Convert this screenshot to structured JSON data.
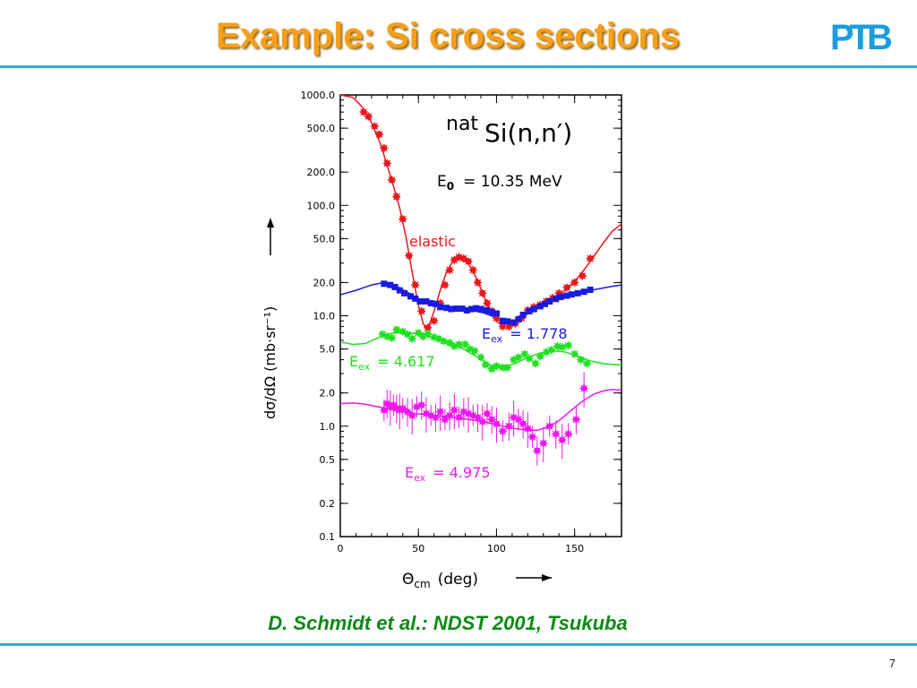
{
  "slide": {
    "title": "Example: Si cross sections",
    "logo": "PTB",
    "citation": "D. Schmidt et al.: NDST 2001, Tsukuba",
    "page_number": "7"
  },
  "chart_data": {
    "type": "scatter",
    "title_prefix": "nat",
    "title_main": "Si(n,n′)",
    "incident_energy_label": "E",
    "incident_energy_sub": "0",
    "incident_energy_value": "=  10.35  MeV",
    "xlabel": "Θ",
    "xlabel_sub": "cm",
    "xlabel_unit": "(deg)",
    "ylabel": "dσ/dΩ  (mb·sr⁻¹)",
    "xlim": [
      0,
      180
    ],
    "ylim": [
      0.1,
      1000
    ],
    "yscale": "log",
    "x_ticks": [
      {
        "value": 0,
        "label": "0"
      },
      {
        "value": 50,
        "label": "50"
      },
      {
        "value": 100,
        "label": "100"
      },
      {
        "value": 150,
        "label": "150"
      }
    ],
    "y_ticks": [
      {
        "value": 1000,
        "label": "1000.0"
      },
      {
        "value": 500,
        "label": "500.0"
      },
      {
        "value": 200,
        "label": "200.0"
      },
      {
        "value": 100,
        "label": "100.0"
      },
      {
        "value": 50,
        "label": "50.0"
      },
      {
        "value": 20,
        "label": "20.0"
      },
      {
        "value": 10,
        "label": "10.0"
      },
      {
        "value": 5,
        "label": "5.0"
      },
      {
        "value": 2,
        "label": "2.0"
      },
      {
        "value": 1,
        "label": "1.0"
      },
      {
        "value": 0.5,
        "label": "0.5"
      },
      {
        "value": 0.2,
        "label": "0.2"
      },
      {
        "value": 0.1,
        "label": "0.1"
      }
    ],
    "series": [
      {
        "name": "elastic",
        "label_prefix": "",
        "label_sub": "",
        "label_value": "",
        "color": "#e8181c",
        "marker": "star",
        "points": [
          [
            15,
            700
          ],
          [
            18,
            640
          ],
          [
            22,
            520
          ],
          [
            25,
            440
          ],
          [
            28,
            330
          ],
          [
            30,
            240
          ],
          [
            33,
            170
          ],
          [
            36,
            120
          ],
          [
            40,
            75
          ],
          [
            44,
            35
          ],
          [
            48,
            19
          ],
          [
            52,
            11
          ],
          [
            56,
            7.8
          ],
          [
            60,
            9.0
          ],
          [
            64,
            13
          ],
          [
            67,
            19
          ],
          [
            70,
            26
          ],
          [
            73,
            32
          ],
          [
            76,
            34
          ],
          [
            79,
            33
          ],
          [
            82,
            31
          ],
          [
            85,
            26
          ],
          [
            88,
            20
          ],
          [
            91,
            16
          ],
          [
            94,
            13
          ],
          [
            97,
            11
          ],
          [
            100,
            9.5
          ],
          [
            104,
            8.0
          ],
          [
            108,
            8.0
          ],
          [
            112,
            8.5
          ],
          [
            116,
            9.5
          ],
          [
            120,
            11.2
          ],
          [
            124,
            12.0
          ],
          [
            128,
            12.5
          ],
          [
            132,
            13.5
          ],
          [
            136,
            14.5
          ],
          [
            140,
            16
          ],
          [
            145,
            18
          ],
          [
            150,
            20
          ],
          [
            155,
            23
          ],
          [
            160,
            33
          ]
        ],
        "curve": [
          [
            0,
            1000
          ],
          [
            8,
            950
          ],
          [
            14,
            780
          ],
          [
            20,
            560
          ],
          [
            26,
            350
          ],
          [
            30,
            230
          ],
          [
            34,
            150
          ],
          [
            38,
            95
          ],
          [
            42,
            52
          ],
          [
            46,
            25
          ],
          [
            50,
            12.5
          ],
          [
            53,
            8.5
          ],
          [
            55,
            7.6
          ],
          [
            57,
            8.3
          ],
          [
            60,
            11
          ],
          [
            64,
            17
          ],
          [
            68,
            25
          ],
          [
            72,
            31
          ],
          [
            76,
            33.5
          ],
          [
            80,
            32
          ],
          [
            84,
            27
          ],
          [
            88,
            20.5
          ],
          [
            92,
            15
          ],
          [
            96,
            11.2
          ],
          [
            100,
            9.0
          ],
          [
            104,
            8.0
          ],
          [
            108,
            8.0
          ],
          [
            112,
            8.6
          ],
          [
            116,
            9.5
          ],
          [
            120,
            10.6
          ],
          [
            126,
            12
          ],
          [
            132,
            13.3
          ],
          [
            138,
            14.7
          ],
          [
            144,
            17
          ],
          [
            150,
            20.5
          ],
          [
            156,
            26
          ],
          [
            162,
            34
          ],
          [
            168,
            45
          ],
          [
            174,
            58
          ],
          [
            180,
            68
          ]
        ]
      },
      {
        "name": "",
        "label_prefix": "E",
        "label_sub": "ex",
        "label_value": "=  1.778",
        "color": "#1a1ae0",
        "marker": "square",
        "points": [
          [
            28,
            19.5
          ],
          [
            32,
            19
          ],
          [
            35,
            18.2
          ],
          [
            38,
            17
          ],
          [
            41,
            16
          ],
          [
            45,
            15
          ],
          [
            48,
            14.3
          ],
          [
            51,
            13.5
          ],
          [
            55,
            13.5
          ],
          [
            58,
            13
          ],
          [
            61,
            12.8
          ],
          [
            64,
            12
          ],
          [
            68,
            11.8
          ],
          [
            71,
            11.5
          ],
          [
            74,
            11.6
          ],
          [
            78,
            11.6
          ],
          [
            81,
            11.2
          ],
          [
            84,
            11.5
          ],
          [
            87,
            11.7
          ],
          [
            90,
            11.5
          ],
          [
            94,
            11.2
          ],
          [
            97,
            10.8
          ],
          [
            100,
            10.5
          ],
          [
            104,
            9.0
          ],
          [
            107,
            8.9
          ],
          [
            111,
            8.7
          ],
          [
            114,
            9.3
          ],
          [
            117,
            10.2
          ],
          [
            121,
            11.0
          ],
          [
            124,
            11.5
          ],
          [
            128,
            12.2
          ],
          [
            131,
            12.8
          ],
          [
            134,
            13.5
          ],
          [
            138,
            14.2
          ],
          [
            141,
            14.8
          ],
          [
            145,
            15.2
          ],
          [
            148,
            15.6
          ],
          [
            152,
            16
          ],
          [
            156,
            16.5
          ],
          [
            160,
            17.2
          ]
        ],
        "curve": [
          [
            0,
            15.5
          ],
          [
            10,
            17
          ],
          [
            20,
            19
          ],
          [
            28,
            20
          ],
          [
            36,
            18.5
          ],
          [
            44,
            16
          ],
          [
            52,
            13.8
          ],
          [
            60,
            12.6
          ],
          [
            68,
            11.9
          ],
          [
            76,
            11.5
          ],
          [
            84,
            11.2
          ],
          [
            92,
            10.6
          ],
          [
            100,
            9.6
          ],
          [
            106,
            9.0
          ],
          [
            112,
            9.1
          ],
          [
            118,
            10
          ],
          [
            126,
            11.8
          ],
          [
            134,
            13.6
          ],
          [
            142,
            15
          ],
          [
            150,
            16
          ],
          [
            158,
            16.8
          ],
          [
            166,
            17.6
          ],
          [
            174,
            18.5
          ],
          [
            180,
            19
          ]
        ]
      },
      {
        "name": "",
        "label_prefix": "E",
        "label_sub": "ex",
        "label_value": "=  4.617",
        "color": "#22e022",
        "marker": "star",
        "points": [
          [
            27,
            6.8
          ],
          [
            30,
            6.5
          ],
          [
            33,
            6.3
          ],
          [
            36,
            7.5
          ],
          [
            40,
            7.2
          ],
          [
            43,
            6.8
          ],
          [
            46,
            6.2
          ],
          [
            50,
            7.0
          ],
          [
            53,
            6.5
          ],
          [
            56,
            6.9
          ],
          [
            60,
            6.4
          ],
          [
            63,
            6.2
          ],
          [
            66,
            5.9
          ],
          [
            70,
            5.7
          ],
          [
            73,
            5.3
          ],
          [
            76,
            5.5
          ],
          [
            80,
            5.5
          ],
          [
            83,
            5.0
          ],
          [
            86,
            4.8
          ],
          [
            90,
            4.2
          ],
          [
            93,
            3.6
          ],
          [
            97,
            3.3
          ],
          [
            100,
            3.5
          ],
          [
            104,
            3.4
          ],
          [
            107,
            3.4
          ],
          [
            111,
            4.0
          ],
          [
            114,
            4.2
          ],
          [
            118,
            4.5
          ],
          [
            121,
            4.1
          ],
          [
            125,
            3.7
          ],
          [
            128,
            4.3
          ],
          [
            132,
            4.7
          ],
          [
            135,
            4.9
          ],
          [
            139,
            5.3
          ],
          [
            142,
            5.2
          ],
          [
            146,
            5.4
          ],
          [
            150,
            4.5
          ],
          [
            154,
            4.0
          ],
          [
            158,
            3.7
          ]
        ],
        "curve": [
          [
            0,
            5.8
          ],
          [
            8,
            5.5
          ],
          [
            16,
            5.6
          ],
          [
            24,
            6.3
          ],
          [
            32,
            6.9
          ],
          [
            40,
            7.1
          ],
          [
            48,
            6.9
          ],
          [
            56,
            6.5
          ],
          [
            64,
            6.0
          ],
          [
            72,
            5.5
          ],
          [
            80,
            4.9
          ],
          [
            88,
            4.2
          ],
          [
            96,
            3.6
          ],
          [
            104,
            3.4
          ],
          [
            112,
            3.7
          ],
          [
            120,
            4.2
          ],
          [
            128,
            4.6
          ],
          [
            136,
            4.8
          ],
          [
            144,
            4.7
          ],
          [
            152,
            4.3
          ],
          [
            160,
            3.9
          ],
          [
            168,
            3.7
          ],
          [
            176,
            3.6
          ],
          [
            180,
            3.6
          ]
        ]
      },
      {
        "name": "",
        "label_prefix": "E",
        "label_sub": "ex",
        "label_value": "=  4.975",
        "color": "#ee18ee",
        "marker": "star",
        "points": [
          [
            28,
            1.4
          ],
          [
            30,
            1.6
          ],
          [
            32,
            1.5
          ],
          [
            34,
            1.55
          ],
          [
            36,
            1.45
          ],
          [
            38,
            1.4
          ],
          [
            40,
            1.45
          ],
          [
            43,
            1.35
          ],
          [
            46,
            1.25
          ],
          [
            49,
            1.5
          ],
          [
            52,
            1.55
          ],
          [
            55,
            1.3
          ],
          [
            58,
            1.25
          ],
          [
            61,
            1.2
          ],
          [
            64,
            1.35
          ],
          [
            67,
            1.15
          ],
          [
            70,
            1.25
          ],
          [
            73,
            1.4
          ],
          [
            76,
            1.2
          ],
          [
            79,
            1.35
          ],
          [
            82,
            1.3
          ],
          [
            85,
            1.25
          ],
          [
            88,
            1.2
          ],
          [
            91,
            1.1
          ],
          [
            94,
            1.3
          ],
          [
            97,
            1.15
          ],
          [
            100,
            1.05
          ],
          [
            104,
            0.9
          ],
          [
            108,
            1.0
          ],
          [
            111,
            1.2
          ],
          [
            114,
            1.15
          ],
          [
            117,
            1.05
          ],
          [
            120,
            0.95
          ],
          [
            123,
            0.8
          ],
          [
            126,
            0.6
          ],
          [
            130,
            0.7
          ],
          [
            134,
            1.0
          ],
          [
            138,
            0.85
          ],
          [
            142,
            0.75
          ],
          [
            146,
            0.85
          ],
          [
            151,
            1.15
          ],
          [
            156,
            2.2
          ]
        ],
        "curve": [
          [
            0,
            1.6
          ],
          [
            8,
            1.62
          ],
          [
            16,
            1.58
          ],
          [
            24,
            1.5
          ],
          [
            32,
            1.42
          ],
          [
            40,
            1.35
          ],
          [
            48,
            1.3
          ],
          [
            56,
            1.27
          ],
          [
            64,
            1.24
          ],
          [
            72,
            1.2
          ],
          [
            80,
            1.16
          ],
          [
            88,
            1.12
          ],
          [
            96,
            1.06
          ],
          [
            104,
            1.0
          ],
          [
            112,
            0.95
          ],
          [
            120,
            0.92
          ],
          [
            126,
            0.92
          ],
          [
            132,
            0.97
          ],
          [
            138,
            1.07
          ],
          [
            144,
            1.25
          ],
          [
            150,
            1.48
          ],
          [
            156,
            1.72
          ],
          [
            162,
            1.94
          ],
          [
            168,
            2.08
          ],
          [
            174,
            2.15
          ],
          [
            180,
            2.12
          ]
        ]
      }
    ]
  }
}
